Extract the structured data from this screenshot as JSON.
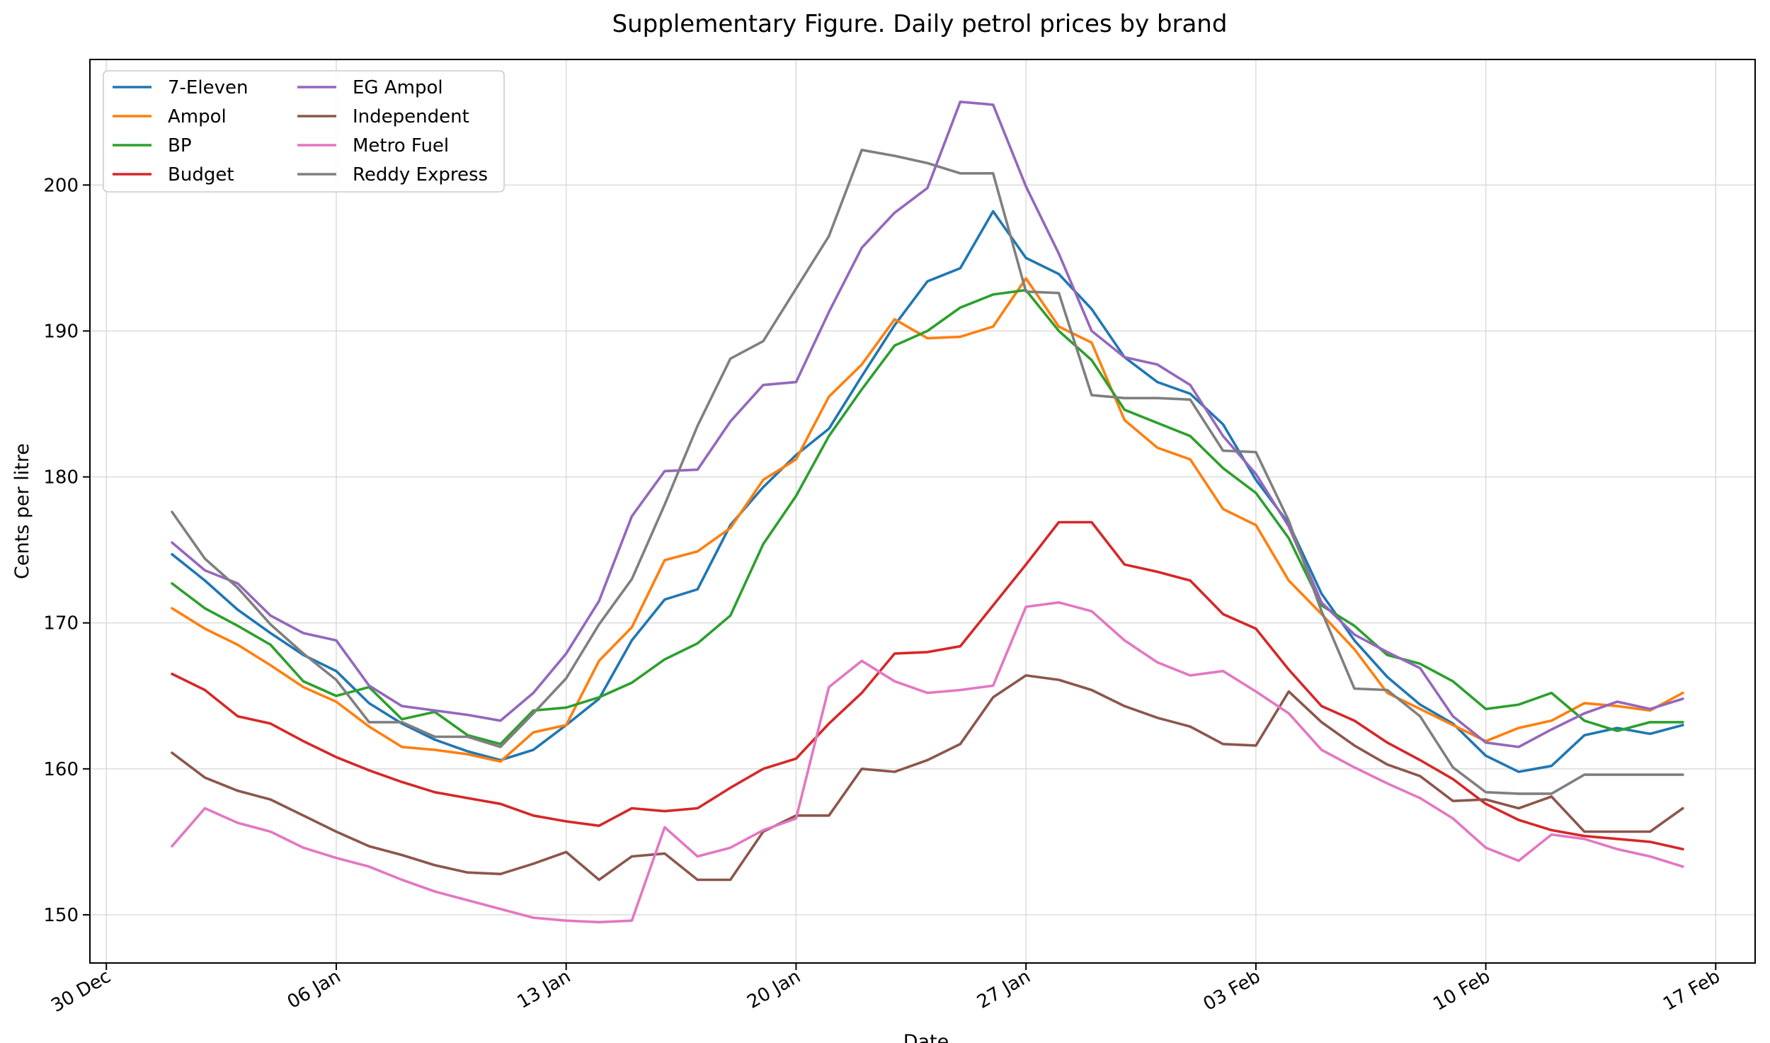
{
  "chart_data": {
    "type": "line",
    "title": "Supplementary Figure. Daily petrol prices by brand",
    "xlabel": "Date",
    "ylabel": "Cents per litre",
    "grid": true,
    "legend_position": "top-left",
    "legend_columns": 2,
    "x_ticks": [
      {
        "day": 0,
        "label": "30 Dec"
      },
      {
        "day": 7,
        "label": "06 Jan"
      },
      {
        "day": 14,
        "label": "13 Jan"
      },
      {
        "day": 21,
        "label": "20 Jan"
      },
      {
        "day": 28,
        "label": "27 Jan"
      },
      {
        "day": 35,
        "label": "03 Feb"
      },
      {
        "day": 42,
        "label": "10 Feb"
      },
      {
        "day": 49,
        "label": "17 Feb"
      }
    ],
    "x_note": "x values are days after 30 Dec",
    "xlim": [
      -0.5,
      50.2
    ],
    "y_ticks": [
      150,
      160,
      170,
      180,
      190,
      200
    ],
    "ylim": [
      146.7,
      208.6
    ],
    "x": [
      2,
      3,
      4,
      5,
      6,
      7,
      8,
      9,
      10,
      11,
      12,
      13,
      14,
      15,
      16,
      17,
      18,
      19,
      20,
      21,
      22,
      23,
      24,
      25,
      26,
      27,
      28,
      29,
      30,
      31,
      32,
      33,
      34,
      35,
      36,
      37,
      38,
      39,
      40,
      41,
      42,
      43,
      44,
      45,
      46,
      47,
      48
    ],
    "series": [
      {
        "name": "7-Eleven",
        "color": "#1f77b4",
        "values": [
          174.7,
          172.9,
          170.9,
          169.3,
          167.8,
          166.7,
          164.5,
          163.1,
          162.0,
          161.2,
          160.6,
          161.3,
          163.0,
          164.8,
          168.8,
          171.6,
          172.3,
          176.7,
          179.3,
          181.5,
          183.3,
          186.9,
          190.4,
          193.4,
          194.3,
          198.2,
          195.0,
          193.9,
          191.5,
          188.2,
          186.5,
          185.7,
          183.6,
          179.8,
          176.8,
          172.0,
          168.8,
          166.3,
          164.4,
          163.1,
          160.9,
          159.8,
          160.2,
          162.3,
          162.8,
          162.4,
          163.0
        ]
      },
      {
        "name": "Ampol",
        "color": "#ff7f0e",
        "values": [
          171.0,
          169.6,
          168.5,
          167.1,
          165.6,
          164.6,
          162.9,
          161.5,
          161.3,
          161.0,
          160.5,
          162.5,
          163.0,
          167.4,
          169.7,
          174.3,
          174.9,
          176.5,
          179.8,
          181.2,
          185.5,
          187.7,
          190.8,
          189.5,
          189.6,
          190.3,
          193.6,
          190.3,
          189.2,
          183.9,
          182.0,
          181.2,
          177.8,
          176.7,
          172.9,
          170.6,
          168.2,
          165.2,
          164.1,
          163.0,
          161.9,
          162.8,
          163.3,
          164.5,
          164.3,
          164.0,
          165.2
        ]
      },
      {
        "name": "BP",
        "color": "#2ca02c",
        "values": [
          172.7,
          171.0,
          169.8,
          168.5,
          166.0,
          165.0,
          165.6,
          163.4,
          163.9,
          162.3,
          161.7,
          164.0,
          164.2,
          164.9,
          165.9,
          167.5,
          168.6,
          170.5,
          175.4,
          178.7,
          182.8,
          186.0,
          189.0,
          190.0,
          191.6,
          192.5,
          192.8,
          190.0,
          188.0,
          184.6,
          183.7,
          182.8,
          180.6,
          178.9,
          175.8,
          171.2,
          169.8,
          167.8,
          167.2,
          166.0,
          164.1,
          164.4,
          165.2,
          163.3,
          162.6,
          163.2,
          163.2
        ]
      },
      {
        "name": "Budget",
        "color": "#d62728",
        "values": [
          166.5,
          165.4,
          163.6,
          163.1,
          161.9,
          160.8,
          159.9,
          159.1,
          158.4,
          158.0,
          157.6,
          156.8,
          156.4,
          156.1,
          157.3,
          157.1,
          157.3,
          158.7,
          160.0,
          160.7,
          163.1,
          165.2,
          167.9,
          168.0,
          168.4,
          171.2,
          174.0,
          176.9,
          176.9,
          174.0,
          173.5,
          172.9,
          170.6,
          169.6,
          166.8,
          164.3,
          163.3,
          161.8,
          160.6,
          159.3,
          157.6,
          156.5,
          155.8,
          155.4,
          155.2,
          155.0,
          154.5
        ]
      },
      {
        "name": "EG Ampol",
        "color": "#9467bd",
        "values": [
          175.5,
          173.6,
          172.7,
          170.5,
          169.3,
          168.8,
          165.7,
          164.3,
          164.0,
          163.7,
          163.3,
          165.2,
          167.9,
          171.5,
          177.3,
          180.4,
          180.5,
          183.8,
          186.3,
          186.5,
          191.3,
          195.7,
          198.1,
          199.8,
          205.7,
          205.5,
          199.9,
          195.3,
          190.0,
          188.2,
          187.7,
          186.3,
          182.8,
          180.2,
          176.6,
          171.4,
          169.2,
          168.0,
          166.9,
          163.6,
          161.8,
          161.5,
          162.7,
          163.8,
          164.6,
          164.1,
          164.8
        ]
      },
      {
        "name": "Independent",
        "color": "#8c564b",
        "values": [
          161.1,
          159.4,
          158.5,
          157.9,
          156.8,
          155.7,
          154.7,
          154.1,
          153.4,
          152.9,
          152.8,
          153.5,
          154.3,
          152.4,
          154.0,
          154.2,
          152.4,
          152.4,
          155.7,
          156.8,
          156.8,
          160.0,
          159.8,
          160.6,
          161.7,
          164.9,
          166.4,
          166.1,
          165.4,
          164.3,
          163.5,
          162.9,
          161.7,
          161.6,
          165.3,
          163.2,
          161.6,
          160.3,
          159.5,
          157.8,
          157.9,
          157.3,
          158.1,
          155.7,
          155.7,
          155.7,
          157.3
        ]
      },
      {
        "name": "Metro Fuel",
        "color": "#e377c2",
        "values": [
          154.7,
          157.3,
          156.3,
          155.7,
          154.6,
          153.9,
          153.3,
          152.4,
          151.6,
          151.0,
          150.4,
          149.8,
          149.6,
          149.5,
          149.6,
          156.0,
          154.0,
          154.6,
          155.8,
          156.6,
          165.6,
          167.4,
          166.0,
          165.2,
          165.4,
          165.7,
          171.1,
          171.4,
          170.8,
          168.8,
          167.3,
          166.4,
          166.7,
          165.3,
          163.8,
          161.3,
          160.1,
          159.0,
          158.0,
          156.6,
          154.6,
          153.7,
          155.5,
          155.2,
          154.5,
          154.0,
          153.3
        ]
      },
      {
        "name": "Reddy Express",
        "color": "#7f7f7f",
        "values": [
          177.6,
          174.4,
          172.4,
          169.9,
          167.9,
          166.1,
          163.2,
          163.2,
          162.2,
          162.2,
          161.5,
          163.8,
          166.2,
          169.9,
          173.0,
          178.1,
          183.5,
          188.1,
          189.3,
          192.9,
          196.5,
          202.4,
          202.0,
          201.5,
          200.8,
          200.8,
          192.7,
          192.6,
          185.6,
          185.4,
          185.4,
          185.3,
          181.8,
          181.7,
          177.0,
          170.8,
          165.5,
          165.4,
          163.6,
          160.1,
          158.4,
          158.3,
          158.3,
          159.6,
          159.6,
          159.6,
          159.6
        ]
      }
    ]
  }
}
